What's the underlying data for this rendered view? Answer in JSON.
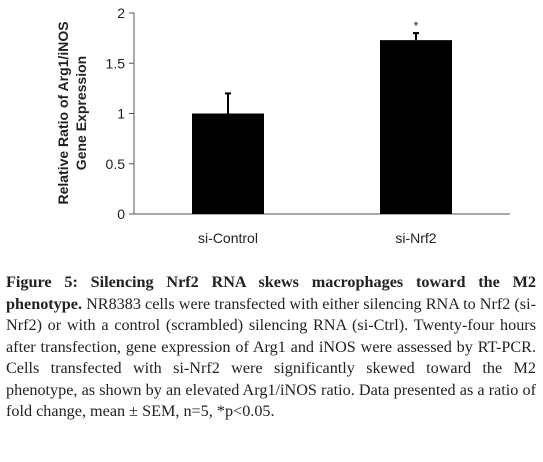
{
  "chart_data": {
    "type": "bar",
    "categories": [
      "si-Control",
      "si-Nrf2"
    ],
    "values": [
      1.0,
      1.73
    ],
    "errors": [
      0.2,
      0.07
    ],
    "annotations": [
      "",
      "*"
    ],
    "ylabel_lines": [
      "Relative Ratio of Arg1/iNOS",
      "Gene Expression"
    ],
    "ylim": [
      0,
      2
    ],
    "yticks": [
      "0",
      "0.5",
      "1",
      "1.5",
      "2"
    ],
    "grid": false,
    "bar_color": "#000000"
  },
  "caption": {
    "title": "Figure 5: Silencing Nrf2 RNA skews macrophages toward the M2 phenotype.",
    "body": " NR8383 cells were transfected with either silencing RNA to Nrf2 (si-Nrf2) or with a control (scrambled) silencing RNA (si-Ctrl). Twenty-four hours after transfection, gene expression of Arg1 and iNOS were assessed by RT-PCR. Cells transfected with si-Nrf2 were significantly skewed toward the M2 phenotype, as shown by an elevated Arg1/iNOS ratio. Data presented as a ratio of fold change, mean ± SEM, n=5, *p<0.05."
  }
}
